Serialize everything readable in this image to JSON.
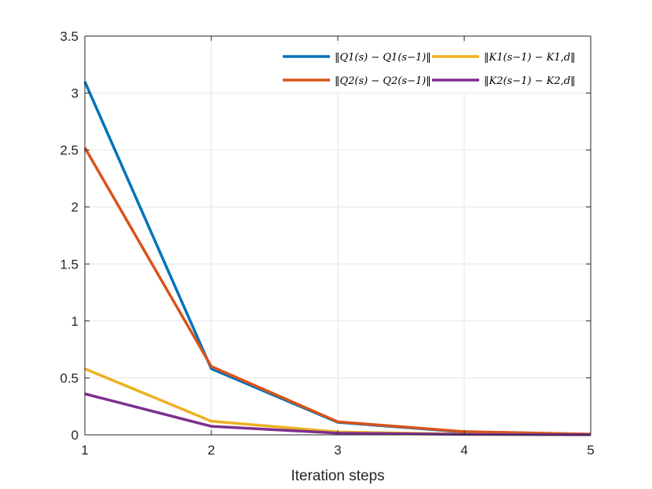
{
  "chart_data": {
    "type": "line",
    "title": "",
    "xlabel": "Iteration steps",
    "ylabel": "",
    "x": [
      1,
      2,
      3,
      4,
      5
    ],
    "xlim": [
      1,
      5
    ],
    "ylim": [
      0,
      3.5
    ],
    "xticks": [
      "1",
      "2",
      "3",
      "4",
      "5"
    ],
    "yticks": [
      "0",
      "0.5",
      "1",
      "1.5",
      "2",
      "2.5",
      "3",
      "3.5"
    ],
    "grid": true,
    "legend_position": "top-right",
    "series": [
      {
        "name": "‖Q1(s) − Q1(s−1)‖",
        "color": "#0072BD",
        "values": [
          3.1,
          0.58,
          0.11,
          0.025,
          0.005
        ]
      },
      {
        "name": "‖Q2(s) − Q2(s−1)‖",
        "color": "#D95319",
        "values": [
          2.52,
          0.6,
          0.115,
          0.028,
          0.006
        ]
      },
      {
        "name": "‖K1(s−1) − K1,d‖",
        "color": "#EDB120",
        "values": [
          0.58,
          0.12,
          0.025,
          0.006,
          0.002
        ]
      },
      {
        "name": "‖K2(s−1) − K2,d‖",
        "color": "#7E2F8E",
        "values": [
          0.36,
          0.075,
          0.015,
          0.004,
          0.001
        ]
      }
    ]
  }
}
